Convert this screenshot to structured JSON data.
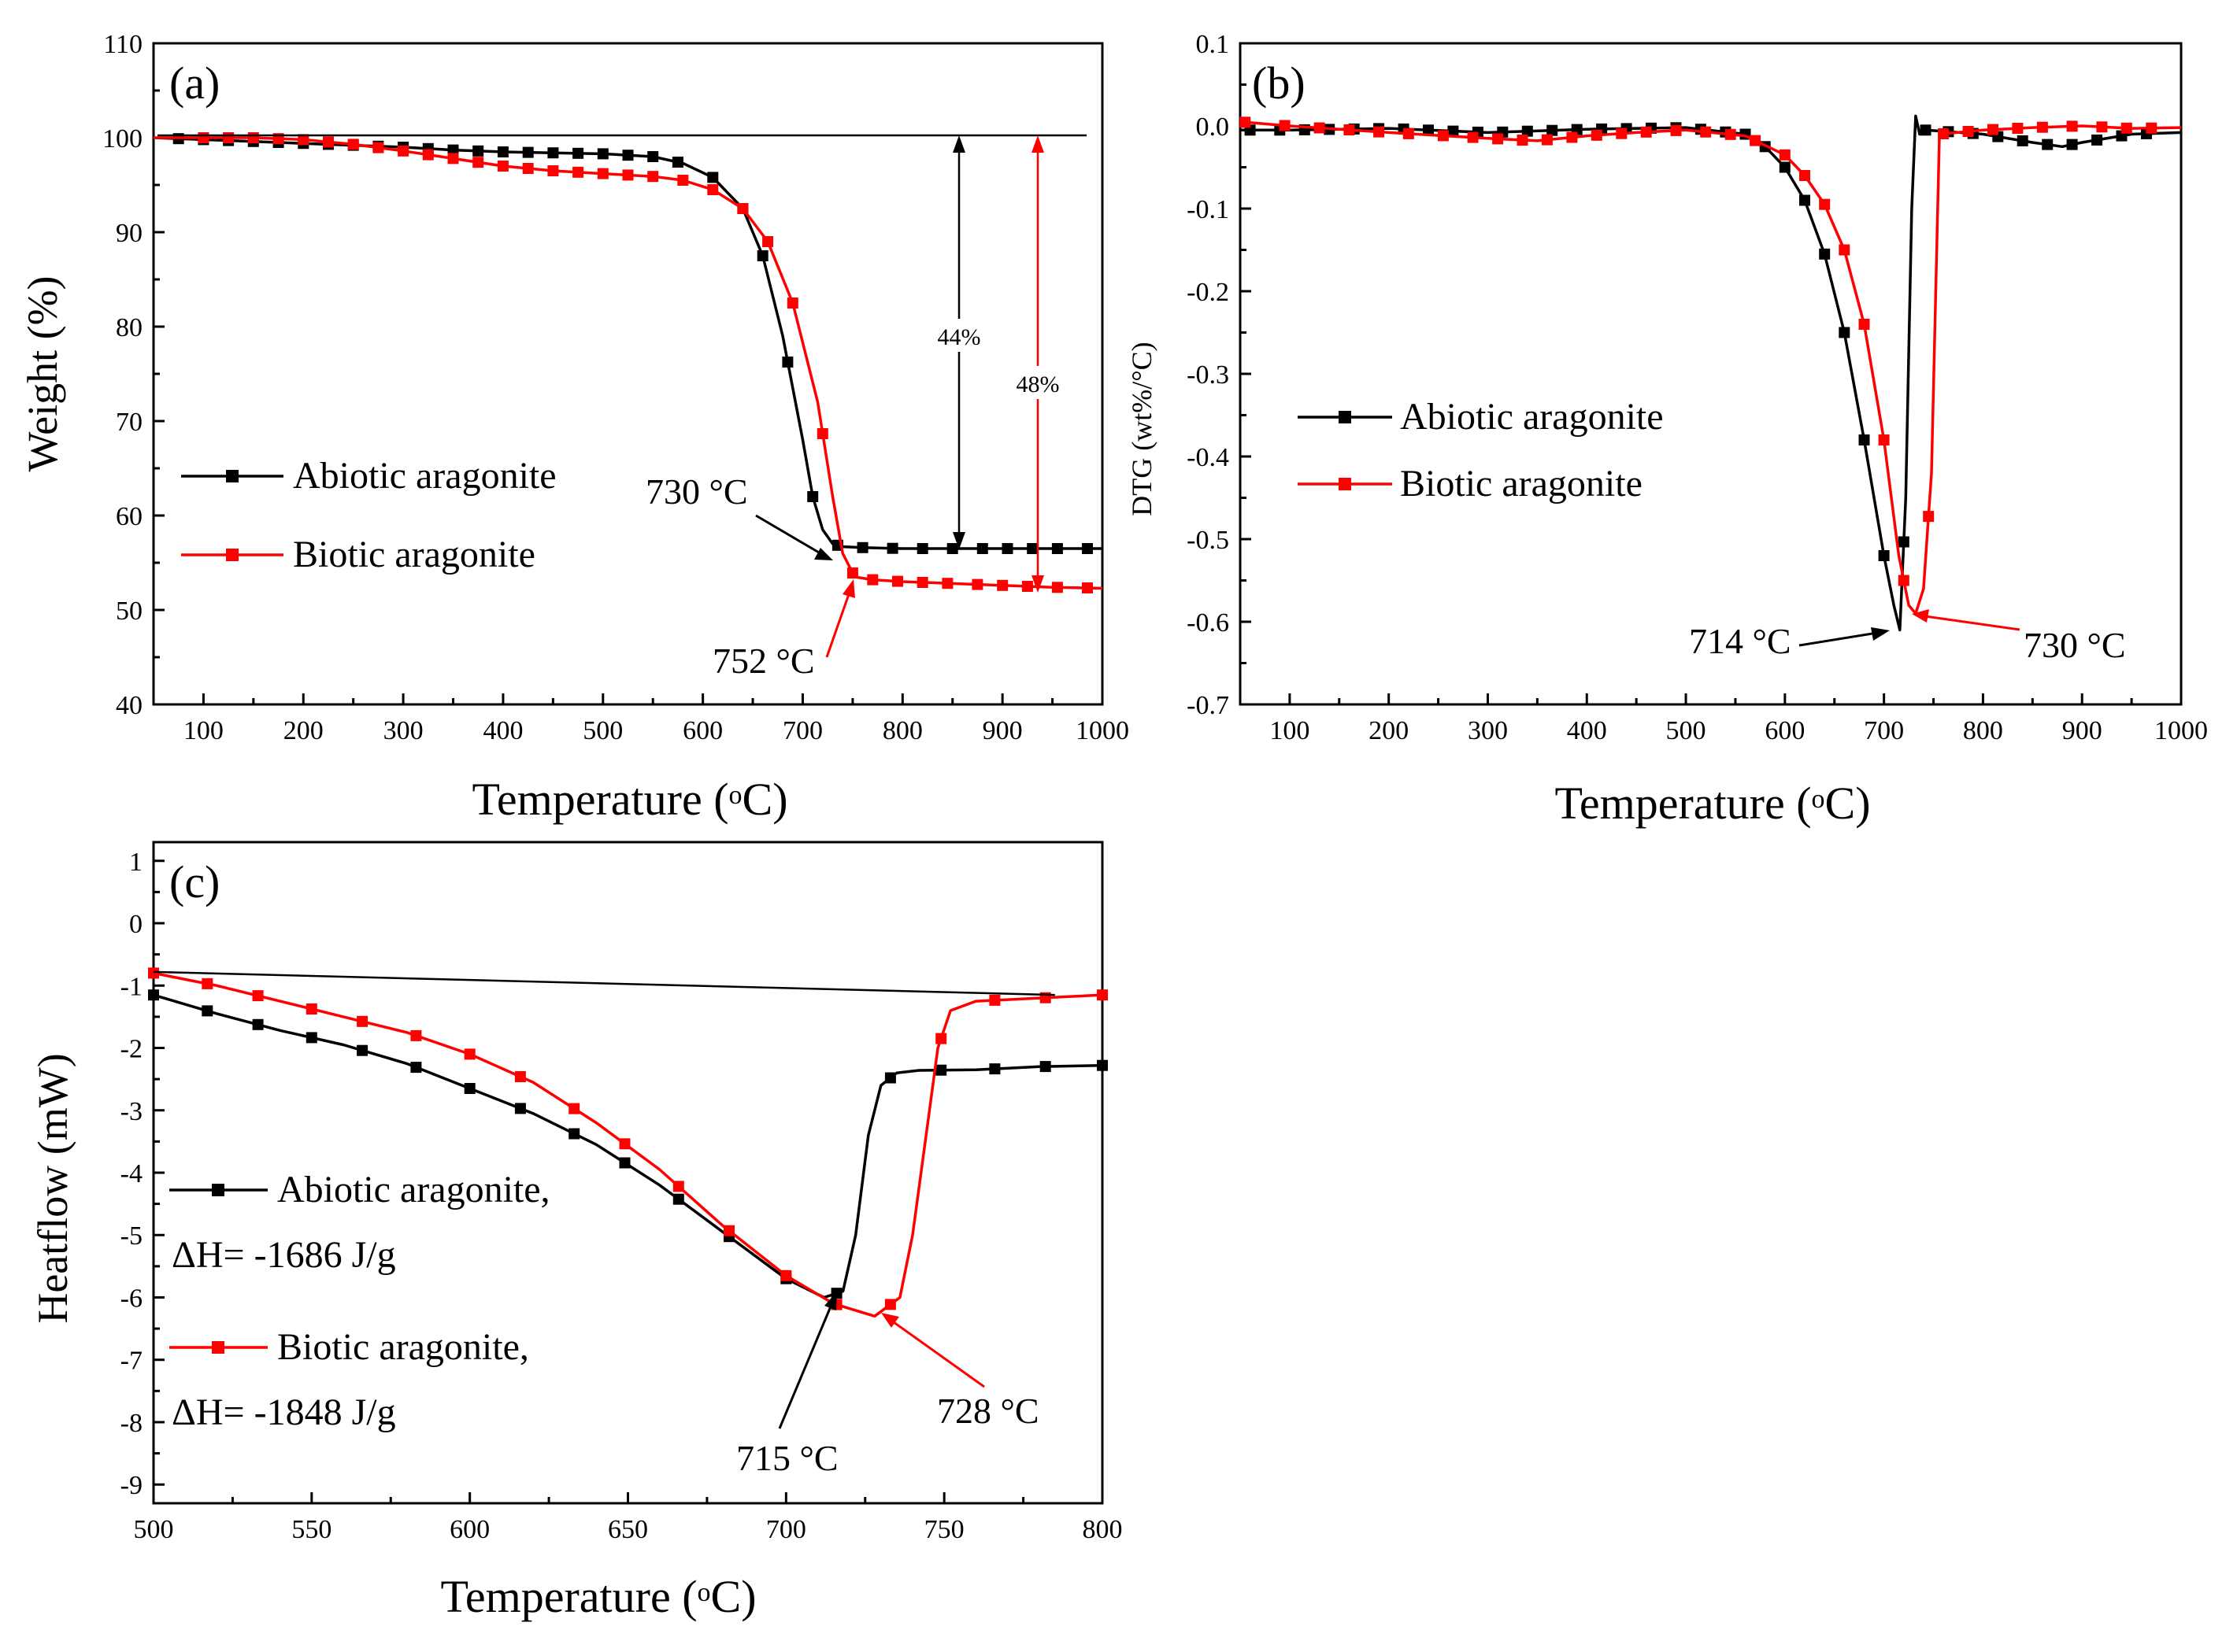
{
  "figure": {
    "panels": [
      "a",
      "b",
      "c"
    ]
  },
  "colors": {
    "abiotic": "#000000",
    "biotic": "#ff0000"
  },
  "chart_data": [
    {
      "id": "a",
      "type": "line",
      "panel_label": "(a)",
      "xlabel": "Temperature (oC)",
      "xlabel_main": "Temperature (",
      "xlabel_sup": "o",
      "xlabel_end": "C)",
      "ylabel": "Weight (%)",
      "xlim": [
        50,
        1000
      ],
      "ylim": [
        40,
        110
      ],
      "xticks": [
        100,
        200,
        300,
        400,
        500,
        600,
        700,
        800,
        900,
        1000
      ],
      "yticks": [
        40,
        50,
        60,
        70,
        80,
        90,
        100,
        110
      ],
      "legend": [
        "Abiotic aragonite",
        "Biotic aragonite"
      ],
      "series": [
        {
          "name": "Abiotic aragonite",
          "color": "#000000",
          "x": [
            50,
            100,
            150,
            200,
            250,
            300,
            350,
            400,
            450,
            500,
            550,
            580,
            610,
            640,
            660,
            680,
            700,
            710,
            720,
            730,
            740,
            760,
            800,
            850,
            900,
            950,
            1000
          ],
          "y": [
            100,
            99.8,
            99.6,
            99.4,
            99.2,
            99.0,
            98.7,
            98.5,
            98.4,
            98.3,
            98.0,
            97.3,
            95.8,
            92.5,
            87.5,
            79.0,
            68.0,
            62.0,
            58.5,
            57.0,
            56.7,
            56.6,
            56.5,
            56.5,
            56.5,
            56.5,
            56.5
          ],
          "markers_x": [
            75,
            100,
            125,
            150,
            175,
            200,
            225,
            250,
            275,
            300,
            325,
            350,
            375,
            400,
            425,
            450,
            475,
            500,
            525,
            550,
            575,
            610,
            640,
            660,
            685,
            710,
            735,
            760,
            790,
            820,
            850,
            880,
            905,
            930,
            955,
            985
          ]
        },
        {
          "name": "Biotic aragonite",
          "color": "#ff0000",
          "x": [
            50,
            100,
            150,
            200,
            250,
            300,
            350,
            400,
            450,
            500,
            550,
            580,
            610,
            640,
            665,
            690,
            715,
            730,
            740,
            752,
            770,
            800,
            850,
            900,
            950,
            1000
          ],
          "y": [
            100,
            100,
            100,
            99.8,
            99.3,
            98.6,
            97.8,
            97.0,
            96.5,
            96.2,
            95.9,
            95.5,
            94.5,
            92.5,
            89.0,
            82.5,
            72.0,
            62.0,
            56.0,
            53.5,
            53.2,
            53.0,
            52.8,
            52.6,
            52.4,
            52.3
          ],
          "markers_x": [
            100,
            125,
            150,
            175,
            200,
            225,
            250,
            275,
            300,
            325,
            350,
            375,
            400,
            425,
            450,
            475,
            500,
            525,
            550,
            580,
            610,
            640,
            665,
            690,
            720,
            750,
            770,
            795,
            820,
            845,
            875,
            900,
            925,
            955,
            985
          ]
        }
      ],
      "annotations": [
        {
          "text": "730 °C",
          "x": 730
        },
        {
          "text": "752 °C",
          "x": 752
        },
        {
          "text": "44%",
          "x": 855
        },
        {
          "text": "48%",
          "x": 935
        }
      ]
    },
    {
      "id": "b",
      "type": "line",
      "panel_label": "(b)",
      "xlabel": "Temperature (oC)",
      "xlabel_main": "Temperature (",
      "xlabel_sup": "o",
      "xlabel_end": "C)",
      "ylabel": "DTG (wt%/°C)",
      "xlim": [
        50,
        1000
      ],
      "ylim": [
        -0.7,
        0.1
      ],
      "xticks": [
        100,
        200,
        300,
        400,
        500,
        600,
        700,
        800,
        900,
        1000
      ],
      "yticks": [
        -0.7,
        -0.6,
        -0.5,
        -0.4,
        -0.3,
        -0.2,
        -0.1,
        0.0,
        0.1
      ],
      "ytick_labels": [
        "-0.7",
        "-0.6",
        "-0.5",
        "-0.4",
        "-0.3",
        "-0.2",
        "-0.1",
        "0.0",
        "0.1"
      ],
      "legend": [
        "Abiotic aragonite",
        "Biotic aragonite"
      ],
      "series": [
        {
          "name": "Abiotic aragonite",
          "color": "#000000",
          "x": [
            50,
            100,
            200,
            300,
            400,
            500,
            560,
            580,
            600,
            620,
            640,
            660,
            680,
            700,
            710,
            716,
            722,
            728,
            732,
            736,
            742,
            800,
            850,
            880,
            900,
            950,
            1000
          ],
          "y": [
            -0.005,
            -0.005,
            -0.003,
            -0.008,
            -0.004,
            -0.002,
            -0.01,
            -0.025,
            -0.05,
            -0.09,
            -0.155,
            -0.25,
            -0.38,
            -0.52,
            -0.58,
            -0.61,
            -0.45,
            -0.1,
            0.012,
            -0.01,
            -0.005,
            -0.01,
            -0.02,
            -0.025,
            -0.02,
            -0.01,
            -0.008
          ],
          "markers_x": [
            60,
            90,
            115,
            140,
            165,
            190,
            215,
            240,
            265,
            290,
            315,
            340,
            365,
            390,
            415,
            440,
            465,
            490,
            515,
            540,
            560,
            580,
            600,
            620,
            640,
            660,
            680,
            700,
            720,
            742,
            765,
            790,
            815,
            840,
            865,
            890,
            915,
            940,
            965
          ]
        },
        {
          "name": "Biotic aragonite",
          "color": "#ff0000",
          "x": [
            50,
            100,
            200,
            300,
            350,
            400,
            450,
            500,
            560,
            600,
            620,
            640,
            660,
            680,
            700,
            715,
            725,
            732,
            740,
            748,
            756,
            800,
            850,
            900,
            950,
            1000
          ],
          "y": [
            0.005,
            0.0,
            -0.008,
            -0.015,
            -0.018,
            -0.012,
            -0.008,
            -0.005,
            -0.012,
            -0.035,
            -0.06,
            -0.095,
            -0.15,
            -0.24,
            -0.38,
            -0.52,
            -0.58,
            -0.59,
            -0.56,
            -0.42,
            -0.01,
            -0.005,
            -0.002,
            0.0,
            -0.003,
            -0.002
          ],
          "markers_x": [
            55,
            95,
            130,
            160,
            190,
            220,
            255,
            285,
            310,
            335,
            360,
            385,
            410,
            435,
            460,
            490,
            520,
            545,
            570,
            600,
            620,
            640,
            660,
            680,
            700,
            720,
            745,
            760,
            785,
            810,
            835,
            860,
            890,
            920,
            945,
            970
          ]
        }
      ],
      "annotations": [
        {
          "text": "714 °C",
          "x": 714
        },
        {
          "text": "730 °C",
          "x": 730
        }
      ]
    },
    {
      "id": "c",
      "type": "line",
      "panel_label": "(c)",
      "xlabel": "Temperature (oC)",
      "xlabel_main": "Temperature (",
      "xlabel_sup": "o",
      "xlabel_end": "C)",
      "ylabel": "Heatflow (mW)",
      "xlim": [
        500,
        800
      ],
      "ylim": [
        -9.3,
        1.3
      ],
      "xticks": [
        500,
        550,
        600,
        650,
        700,
        750,
        800
      ],
      "yticks": [
        -9,
        -8,
        -7,
        -6,
        -5,
        -4,
        -3,
        -2,
        -1,
        0,
        1
      ],
      "legend": [
        "Abiotic aragonite,",
        "Biotic aragonite,"
      ],
      "legend_extra": [
        "ΔH= -1686 J/g",
        "ΔH= -1848 J/g"
      ],
      "series": [
        {
          "name": "Abiotic aragonite",
          "color": "#000000",
          "x": [
            500,
            520,
            540,
            560,
            580,
            600,
            620,
            640,
            660,
            680,
            700,
            712,
            718,
            722,
            726,
            730,
            735,
            742,
            760,
            780,
            800
          ],
          "y": [
            -1.15,
            -1.45,
            -1.72,
            -1.95,
            -2.25,
            -2.65,
            -3.05,
            -3.55,
            -4.2,
            -4.95,
            -5.7,
            -6.0,
            -5.9,
            -5.0,
            -3.4,
            -2.6,
            -2.4,
            -2.36,
            -2.35,
            -2.3,
            -2.28
          ],
          "markers_x": [
            500,
            517,
            533,
            550,
            566,
            583,
            600,
            616,
            633,
            649,
            666,
            682,
            700,
            716,
            733,
            749,
            766,
            782,
            800
          ]
        },
        {
          "name": "Biotic aragonite",
          "color": "#ff0000",
          "x": [
            500,
            520,
            540,
            560,
            580,
            600,
            620,
            640,
            660,
            680,
            700,
            715,
            728,
            736,
            740,
            744,
            748,
            752,
            760,
            780,
            800
          ],
          "y": [
            -0.8,
            -1.0,
            -1.25,
            -1.5,
            -1.75,
            -2.1,
            -2.55,
            -3.2,
            -3.95,
            -4.85,
            -5.65,
            -6.1,
            -6.3,
            -6.0,
            -5.0,
            -3.5,
            -2.0,
            -1.4,
            -1.25,
            -1.2,
            -1.15
          ],
          "markers_x": [
            500,
            517,
            533,
            550,
            566,
            583,
            600,
            616,
            633,
            649,
            666,
            682,
            700,
            716,
            733,
            749,
            766,
            782,
            800
          ]
        }
      ],
      "baseline": {
        "x": [
          500,
          785
        ],
        "y": [
          -0.78,
          -1.15
        ]
      },
      "annotations": [
        {
          "text": "715 °C",
          "x": 715
        },
        {
          "text": "728 °C",
          "x": 728
        }
      ]
    }
  ]
}
